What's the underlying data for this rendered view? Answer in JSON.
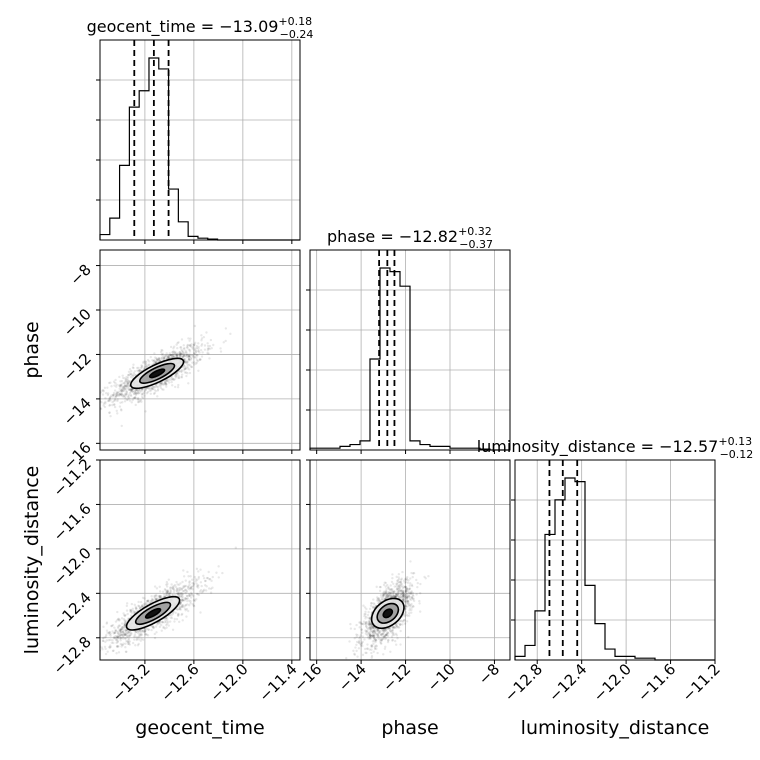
{
  "chart_data": {
    "type": "corner",
    "parameters": [
      "geocent_time",
      "phase",
      "luminosity_distance"
    ],
    "axis_labels": {
      "geocent_time": "geocent_time",
      "phase": "phase",
      "luminosity_distance": "luminosity_distance"
    },
    "titles": [
      {
        "param": "geocent_time",
        "prefix": "geocent_time = ",
        "median": "−13.09",
        "plus": "+0.18",
        "minus": "−0.24"
      },
      {
        "param": "phase",
        "prefix": "phase = ",
        "median": "−12.82",
        "plus": "+0.32",
        "minus": "−0.37"
      },
      {
        "param": "luminosity_distance",
        "prefix": "luminosity_distance = ",
        "median": "−12.57",
        "plus": "+0.13",
        "minus": "−0.12"
      }
    ],
    "ranges": {
      "geocent_time": [
        -13.75,
        -11.3
      ],
      "phase": [
        -16.3,
        -7.3
      ],
      "luminosity_distance": [
        -13.0,
        -11.2
      ]
    },
    "ticks": {
      "geocent_time": [
        -13.2,
        -12.6,
        -12.0,
        -11.4
      ],
      "phase": [
        -16,
        -14,
        -12,
        -10,
        -8
      ],
      "luminosity_distance": [
        -12.8,
        -12.4,
        -12.0,
        -11.6,
        -11.2
      ]
    },
    "tick_labels": {
      "geocent_time": [
        "−13.2",
        "−12.6",
        "−12.0",
        "−11.4"
      ],
      "phase": [
        "−16",
        "−14",
        "−12",
        "−10",
        "−8"
      ],
      "luminosity_distance": [
        "−12.8",
        "−12.4",
        "−12.0",
        "−11.6",
        "−11.2"
      ]
    },
    "quantiles": {
      "geocent_time": [
        -13.33,
        -13.09,
        -12.91
      ],
      "phase": [
        -13.19,
        -12.82,
        -12.5
      ],
      "luminosity_distance": [
        -12.69,
        -12.57,
        -12.44
      ]
    },
    "histograms": {
      "geocent_time": {
        "edges": [
          -13.75,
          -13.63,
          -13.51,
          -13.39,
          -13.27,
          -13.15,
          -13.03,
          -12.91,
          -12.79,
          -12.67,
          -12.55,
          -12.43,
          -12.31,
          -12.19,
          -12.07,
          -11.95,
          -11.83,
          -11.71,
          -11.59,
          -11.47,
          -11.3
        ],
        "counts": [
          0.03,
          0.12,
          0.41,
          0.73,
          0.82,
          1.0,
          0.94,
          0.28,
          0.1,
          0.02,
          0.01,
          0.005,
          0,
          0,
          0,
          0,
          0,
          0,
          0,
          0
        ]
      },
      "phase": {
        "edges": [
          -16.3,
          -15.85,
          -15.4,
          -14.95,
          -14.5,
          -14.05,
          -13.6,
          -13.15,
          -12.7,
          -12.25,
          -11.8,
          -11.35,
          -10.9,
          -10.45,
          -10.0,
          -9.55,
          -9.1,
          -8.65,
          -8.2,
          -7.75,
          -7.3
        ],
        "counts": [
          0.01,
          0.01,
          0.01,
          0.02,
          0.03,
          0.05,
          0.5,
          1.0,
          0.98,
          0.9,
          0.05,
          0.03,
          0.02,
          0.02,
          0.01,
          0.01,
          0.01,
          0.005,
          0,
          0
        ]
      },
      "luminosity_distance": {
        "edges": [
          -13.0,
          -12.91,
          -12.82,
          -12.73,
          -12.64,
          -12.55,
          -12.46,
          -12.37,
          -12.28,
          -12.19,
          -12.1,
          -12.01,
          -11.92,
          -11.83,
          -11.74,
          -11.65,
          -11.56,
          -11.47,
          -11.38,
          -11.29,
          -11.2
        ],
        "counts": [
          0.02,
          0.08,
          0.27,
          0.69,
          0.88,
          1.0,
          0.98,
          0.41,
          0.2,
          0.06,
          0.02,
          0.02,
          0.01,
          0.01,
          0,
          0,
          0,
          0,
          0,
          0
        ]
      }
    },
    "kde_2d": [
      {
        "x": "geocent_time",
        "y": "phase",
        "center": [
          -13.05,
          -12.85
        ],
        "sx": 0.2,
        "sy": 0.45,
        "rho": 0.8
      },
      {
        "x": "geocent_time",
        "y": "luminosity_distance",
        "center": [
          -13.1,
          -12.58
        ],
        "sx": 0.2,
        "sy": 0.1,
        "rho": 0.82
      },
      {
        "x": "phase",
        "y": "luminosity_distance",
        "center": [
          -12.8,
          -12.58
        ],
        "sx": 0.4,
        "sy": 0.1,
        "rho": 0.65
      }
    ],
    "grid": true
  }
}
